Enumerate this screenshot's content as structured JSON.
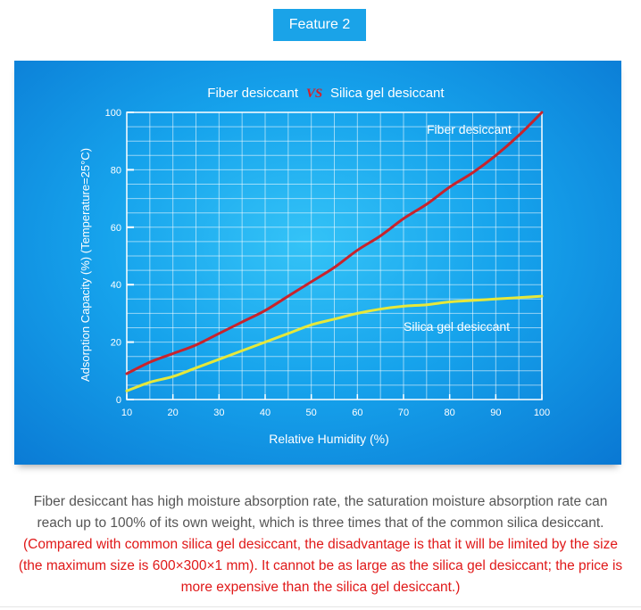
{
  "badge": {
    "label": "Feature 2"
  },
  "chart_data": {
    "type": "line",
    "title_left": "Fiber desiccant",
    "title_vs": "VS",
    "title_right": "Silica gel desiccant",
    "xlabel": "Relative Humidity (%)",
    "ylabel": "Adsorption Capacity (%) (Temperature=25°C)",
    "xlim": [
      10,
      100
    ],
    "ylim": [
      0,
      100
    ],
    "x_ticks": [
      10,
      20,
      30,
      40,
      50,
      60,
      70,
      80,
      90,
      100
    ],
    "y_ticks": [
      0,
      20,
      40,
      60,
      80,
      100
    ],
    "grid": true,
    "series": [
      {
        "name": "Fiber desiccant",
        "color": "#c8232c",
        "x": [
          10,
          15,
          20,
          25,
          30,
          35,
          40,
          45,
          50,
          55,
          60,
          65,
          70,
          75,
          80,
          85,
          90,
          95,
          100
        ],
        "y": [
          9,
          13,
          16,
          19,
          23,
          27,
          31,
          36,
          41,
          46,
          52,
          57,
          63,
          68,
          74,
          79,
          85,
          92,
          100
        ]
      },
      {
        "name": "Silica gel desiccant",
        "color": "#e6e83a",
        "x": [
          10,
          15,
          20,
          25,
          30,
          35,
          40,
          45,
          50,
          55,
          60,
          65,
          70,
          75,
          80,
          85,
          90,
          95,
          100
        ],
        "y": [
          3,
          6,
          8,
          11,
          14,
          17,
          20,
          23,
          26,
          28,
          30,
          31.5,
          32.5,
          33,
          34,
          34.5,
          35,
          35.5,
          36
        ]
      }
    ]
  },
  "description": {
    "normal": "Fiber desiccant has high moisture absorption rate, the saturation moisture absorption rate can reach up to 100% of its own weight, which is three times that of the common silica desiccant. ",
    "highlight": "(Compared with common silica gel desiccant, the disadvantage is that it will be limited by the size (the maximum size is 600×300×1 mm). It cannot be as large as the silica gel desiccant; the price is more expensive than the silica gel desiccant.)"
  }
}
